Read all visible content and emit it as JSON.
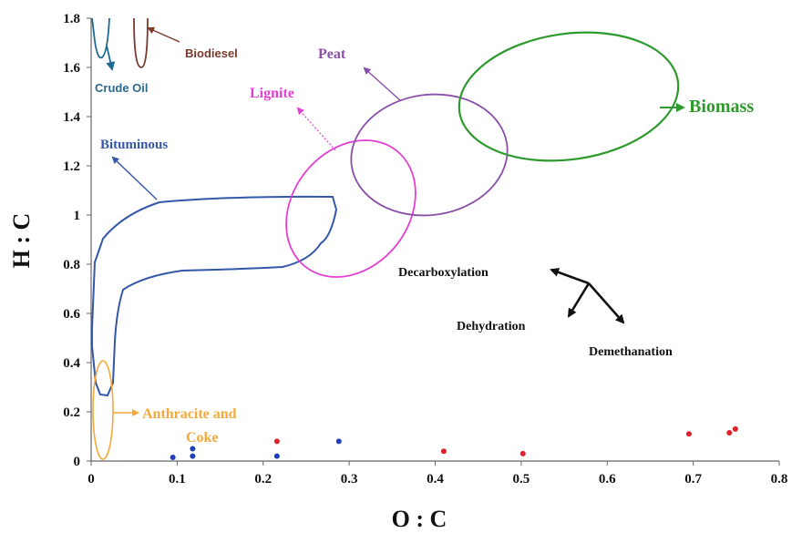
{
  "chart_data": {
    "type": "scatter",
    "xlabel": "O : C",
    "ylabel": "H : C",
    "xlim": [
      0,
      0.8
    ],
    "ylim": [
      0,
      1.8
    ],
    "xticks": [
      "0",
      "0.1",
      "0.2",
      "0.3",
      "0.4",
      "0.5",
      "0.6",
      "0.7",
      "0.8"
    ],
    "yticks": [
      "0",
      "0.2",
      "0.4",
      "0.6",
      "0.8",
      "1",
      "1.2",
      "1.4",
      "1.6",
      "1.8"
    ],
    "grid": false,
    "series": [
      {
        "color": "#1f3fbf",
        "points": [
          [
            0.095,
            0.015
          ],
          [
            0.118,
            0.05
          ],
          [
            0.118,
            0.02
          ],
          [
            0.216,
            0.02
          ],
          [
            0.288,
            0.08
          ]
        ]
      },
      {
        "color": "#e0202a",
        "points": [
          [
            0.216,
            0.08
          ],
          [
            0.41,
            0.04
          ],
          [
            0.502,
            0.03
          ],
          [
            0.695,
            0.11
          ],
          [
            0.742,
            0.115
          ],
          [
            0.749,
            0.13
          ]
        ]
      }
    ],
    "regions": [
      {
        "label": "Crude Oil",
        "color": "#2a6a8f"
      },
      {
        "label": "Biodiesel",
        "color": "#7a3b2e"
      },
      {
        "label": "Bituminous",
        "color": "#3457a8"
      },
      {
        "label": "Anthracite and",
        "label2": "Coke",
        "color": "#f4a93a"
      },
      {
        "label": "Lignite",
        "color": "#e43fd3"
      },
      {
        "label": "Peat",
        "color": "#8a4fa8"
      },
      {
        "label": "Biomass",
        "color": "#2e9a2e"
      }
    ],
    "annotations": [
      "Decarboxylation",
      "Dehydration",
      "Demethanation"
    ]
  }
}
